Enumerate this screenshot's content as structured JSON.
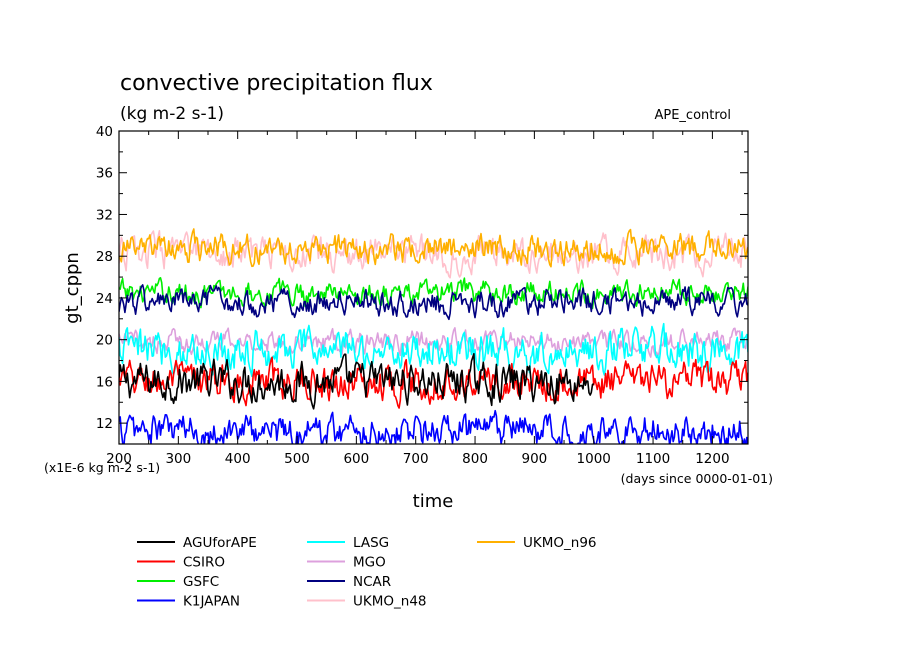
{
  "chart_data": {
    "type": "line",
    "title": "convective precipitation flux",
    "subtitle": "(kg m-2 s-1)",
    "tag": "APE_control",
    "xlabel": "time",
    "ylabel": "gt_cppn",
    "y_scale_note": "(x1E-6 kg m-2 s-1)",
    "x_unit_note": "(days since 0000-01-01)",
    "xlim": [
      200,
      1260
    ],
    "ylim": [
      10,
      40
    ],
    "x_ticks": [
      200,
      300,
      400,
      500,
      600,
      700,
      800,
      900,
      1000,
      1100,
      1200
    ],
    "y_ticks": [
      12,
      16,
      20,
      24,
      28,
      32,
      36,
      40
    ],
    "grid": false,
    "legend_position": "bottom",
    "series": [
      {
        "name": "AGUforAPE",
        "color": "#000000",
        "mean": 16.0,
        "amplitude": 1.6,
        "x_start": 200,
        "x_end": 1000
      },
      {
        "name": "CSIRO",
        "color": "#ff0000",
        "mean": 16.0,
        "amplitude": 1.5,
        "x_start": 200,
        "x_end": 1260
      },
      {
        "name": "GSFC",
        "color": "#00ee00",
        "mean": 24.5,
        "amplitude": 1.0,
        "x_start": 200,
        "x_end": 1260
      },
      {
        "name": "K1JAPAN",
        "color": "#0000ff",
        "mean": 11.3,
        "amplitude": 1.4,
        "x_start": 200,
        "x_end": 1260
      },
      {
        "name": "LASG",
        "color": "#00ffff",
        "mean": 19.0,
        "amplitude": 1.7,
        "x_start": 200,
        "x_end": 1260
      },
      {
        "name": "MGO",
        "color": "#dda0dd",
        "mean": 19.8,
        "amplitude": 0.9,
        "x_start": 200,
        "x_end": 1260
      },
      {
        "name": "NCAR",
        "color": "#000080",
        "mean": 23.6,
        "amplitude": 1.1,
        "x_start": 200,
        "x_end": 1260
      },
      {
        "name": "UKMO_n48",
        "color": "#ffc0cb",
        "mean": 28.3,
        "amplitude": 1.4,
        "x_start": 200,
        "x_end": 1260
      },
      {
        "name": "UKMO_n96",
        "color": "#ffb000",
        "mean": 28.7,
        "amplitude": 1.2,
        "x_start": 200,
        "x_end": 1260
      }
    ]
  }
}
